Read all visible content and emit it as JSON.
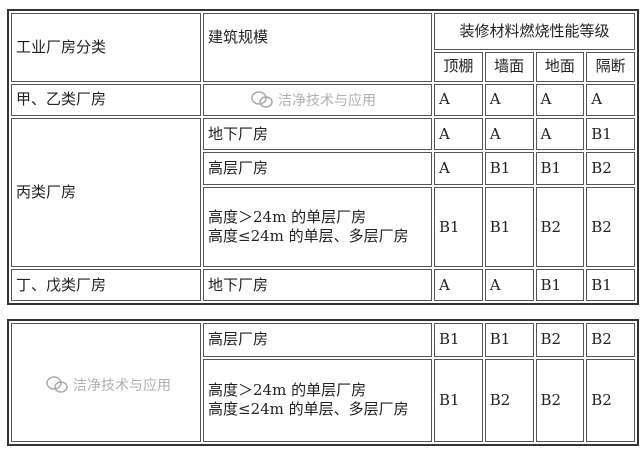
{
  "header": {
    "category": "工业厂房分类",
    "scale": "建筑规模",
    "grade_group": "装修材料燃烧性能等级",
    "columns": [
      "顶棚",
      "墙面",
      "地面",
      "隔断"
    ]
  },
  "table1": {
    "rows": [
      {
        "category": "甲、乙类厂房",
        "scale": "",
        "values": [
          "A",
          "A",
          "A",
          "A"
        ]
      },
      {
        "category": "丙类厂房",
        "scale": "地下厂房",
        "values": [
          "A",
          "A",
          "A",
          "B1"
        ]
      },
      {
        "category": "",
        "scale": "高层厂房",
        "values": [
          "A",
          "B1",
          "B1",
          "B2"
        ]
      },
      {
        "category": "",
        "scale": "高度＞24m 的单层厂房\n高度≤24m 的单层、多层厂房",
        "values": [
          "B1",
          "B1",
          "B2",
          "B2"
        ]
      },
      {
        "category": "丁、戊类厂房",
        "scale": "地下厂房",
        "values": [
          "A",
          "A",
          "B1",
          "B1"
        ]
      }
    ]
  },
  "table2": {
    "rows": [
      {
        "category": "",
        "scale": "高层厂房",
        "values": [
          "B1",
          "B1",
          "B2",
          "B2"
        ]
      },
      {
        "category": "",
        "scale": "高度＞24m 的单层厂房\n高度≤24m 的单层、多层厂房",
        "values": [
          "B1",
          "B2",
          "B2",
          "B2"
        ]
      }
    ]
  },
  "watermark": "洁净技术与应用"
}
